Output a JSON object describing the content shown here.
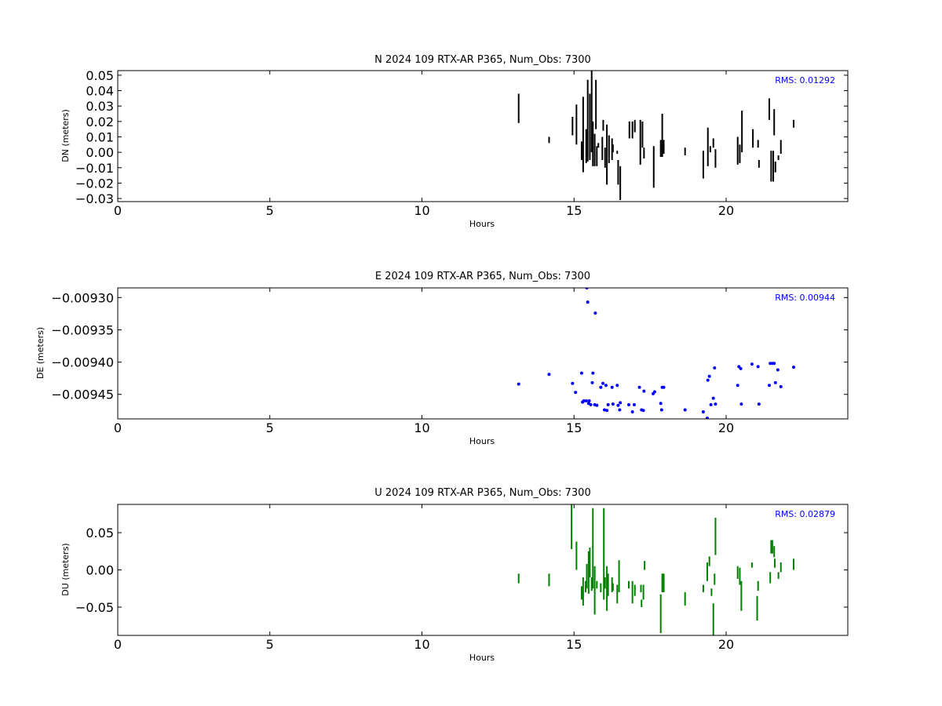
{
  "chart_data": [
    {
      "type": "line",
      "title": "N 2024 109 RTX-AR  P365, Num_Obs: 7300",
      "xlabel": "Hours",
      "ylabel": "DN (meters)",
      "xlim": [
        0,
        24
      ],
      "ylim": [
        -0.032,
        0.053
      ],
      "x_ticks": [
        0,
        5,
        10,
        15,
        20
      ],
      "y_ticks": [
        -0.03,
        -0.02,
        -0.01,
        0.0,
        0.01,
        0.02,
        0.03,
        0.04,
        0.05
      ],
      "y_tick_labels": [
        "−0.03",
        "−0.02",
        "−0.01",
        "0.00",
        "0.01",
        "0.02",
        "0.03",
        "0.04",
        "0.05"
      ],
      "x_tick_labels": [
        "0",
        "5",
        "10",
        "15",
        "20"
      ],
      "color": "#000000",
      "mark": "vline",
      "grid": false,
      "rms_label": "RMS:  0.01292",
      "rms_color": "#0000ff",
      "segments": [
        {
          "x": 13.18,
          "y0": 0.019,
          "y1": 0.038
        },
        {
          "x": 14.18,
          "y0": 0.006,
          "y1": 0.01
        },
        {
          "x": 14.95,
          "y0": 0.011,
          "y1": 0.023
        },
        {
          "x": 15.08,
          "y0": 0.005,
          "y1": 0.031
        },
        {
          "x": 15.25,
          "y0": -0.005,
          "y1": 0.007
        },
        {
          "x": 15.3,
          "y0": -0.013,
          "y1": 0.036
        },
        {
          "x": 15.4,
          "y0": -0.007,
          "y1": 0.015
        },
        {
          "x": 15.45,
          "y0": -0.006,
          "y1": 0.047
        },
        {
          "x": 15.52,
          "y0": -0.005,
          "y1": 0.038
        },
        {
          "x": 15.58,
          "y0": 0.0,
          "y1": 0.053
        },
        {
          "x": 15.62,
          "y0": -0.009,
          "y1": 0.02
        },
        {
          "x": 15.68,
          "y0": -0.009,
          "y1": 0.012
        },
        {
          "x": 15.72,
          "y0": 0.015,
          "y1": 0.047
        },
        {
          "x": 15.75,
          "y0": -0.009,
          "y1": 0.004
        },
        {
          "x": 15.8,
          "y0": 0.003,
          "y1": 0.006
        },
        {
          "x": 15.93,
          "y0": -0.005,
          "y1": 0.01
        },
        {
          "x": 15.96,
          "y0": 0.014,
          "y1": 0.021
        },
        {
          "x": 16.02,
          "y0": -0.01,
          "y1": 0.003
        },
        {
          "x": 16.08,
          "y0": -0.021,
          "y1": 0.018
        },
        {
          "x": 16.15,
          "y0": -0.007,
          "y1": 0.011
        },
        {
          "x": 16.25,
          "y0": -0.005,
          "y1": 0.009
        },
        {
          "x": 16.28,
          "y0": 0.0,
          "y1": 0.005
        },
        {
          "x": 16.42,
          "y0": -0.001,
          "y1": 0.001
        },
        {
          "x": 16.45,
          "y0": -0.021,
          "y1": -0.005
        },
        {
          "x": 16.52,
          "y0": -0.031,
          "y1": -0.009
        },
        {
          "x": 16.82,
          "y0": 0.009,
          "y1": 0.02
        },
        {
          "x": 16.92,
          "y0": 0.009,
          "y1": 0.02
        },
        {
          "x": 17.0,
          "y0": 0.013,
          "y1": 0.021
        },
        {
          "x": 17.18,
          "y0": -0.008,
          "y1": 0.021
        },
        {
          "x": 17.25,
          "y0": 0.003,
          "y1": 0.02
        },
        {
          "x": 17.3,
          "y0": -0.004,
          "y1": 0.003
        },
        {
          "x": 17.62,
          "y0": -0.023,
          "y1": 0.004
        },
        {
          "x": 17.85,
          "y0": -0.003,
          "y1": 0.008
        },
        {
          "x": 17.9,
          "y0": -0.003,
          "y1": 0.025
        },
        {
          "x": 17.95,
          "y0": -0.001,
          "y1": 0.008
        },
        {
          "x": 18.65,
          "y0": -0.002,
          "y1": 0.003
        },
        {
          "x": 19.25,
          "y0": -0.017,
          "y1": 0.001
        },
        {
          "x": 19.4,
          "y0": -0.009,
          "y1": 0.016
        },
        {
          "x": 19.48,
          "y0": 0.0,
          "y1": 0.004
        },
        {
          "x": 19.58,
          "y0": 0.003,
          "y1": 0.009
        },
        {
          "x": 19.65,
          "y0": -0.01,
          "y1": 0.002
        },
        {
          "x": 20.38,
          "y0": -0.008,
          "y1": 0.01
        },
        {
          "x": 20.45,
          "y0": -0.007,
          "y1": 0.005
        },
        {
          "x": 20.52,
          "y0": 0.0,
          "y1": 0.027
        },
        {
          "x": 20.88,
          "y0": 0.003,
          "y1": 0.015
        },
        {
          "x": 21.05,
          "y0": 0.003,
          "y1": 0.008
        },
        {
          "x": 21.08,
          "y0": -0.01,
          "y1": -0.005
        },
        {
          "x": 21.42,
          "y0": 0.021,
          "y1": 0.035
        },
        {
          "x": 21.48,
          "y0": -0.019,
          "y1": 0.001
        },
        {
          "x": 21.55,
          "y0": -0.019,
          "y1": 0.001
        },
        {
          "x": 21.58,
          "y0": 0.011,
          "y1": 0.028
        },
        {
          "x": 21.62,
          "y0": -0.013,
          "y1": -0.006
        },
        {
          "x": 21.72,
          "y0": -0.005,
          "y1": -0.002
        },
        {
          "x": 21.8,
          "y0": -0.001,
          "y1": 0.008
        },
        {
          "x": 22.22,
          "y0": 0.016,
          "y1": 0.021
        }
      ]
    },
    {
      "type": "scatter",
      "title": "E 2024 109 RTX-AR  P365, Num_Obs: 7300",
      "xlabel": "Hours",
      "ylabel": "DE (meters)",
      "xlim": [
        0,
        24
      ],
      "ylim": [
        -0.009488,
        -0.009285
      ],
      "x_ticks": [
        0,
        5,
        10,
        15,
        20
      ],
      "y_ticks": [
        -0.0093,
        -0.00935,
        -0.0094,
        -0.00945
      ],
      "y_tick_labels": [
        "−0.00930",
        "−0.00935",
        "−0.00940",
        "−0.00945"
      ],
      "x_tick_labels": [
        "0",
        "5",
        "10",
        "15",
        "20"
      ],
      "color": "#0000ff",
      "mark": "point",
      "grid": false,
      "rms_label": "RMS:  0.00944",
      "rms_color": "#0000ff",
      "points": [
        [
          13.18,
          -0.009434
        ],
        [
          14.18,
          -0.009419
        ],
        [
          14.95,
          -0.009433
        ],
        [
          15.05,
          -0.009447
        ],
        [
          15.25,
          -0.009417
        ],
        [
          15.28,
          -0.009462
        ],
        [
          15.32,
          -0.00946
        ],
        [
          15.4,
          -0.00946
        ],
        [
          15.42,
          -0.009285
        ],
        [
          15.45,
          -0.009307
        ],
        [
          15.48,
          -0.009464
        ],
        [
          15.5,
          -0.00946
        ],
        [
          15.55,
          -0.009466
        ],
        [
          15.6,
          -0.009432
        ],
        [
          15.62,
          -0.009417
        ],
        [
          15.68,
          -0.009466
        ],
        [
          15.7,
          -0.009324
        ],
        [
          15.75,
          -0.009467
        ],
        [
          15.88,
          -0.009439
        ],
        [
          15.95,
          -0.009433
        ],
        [
          16.0,
          -0.009474
        ],
        [
          16.05,
          -0.009436
        ],
        [
          16.08,
          -0.009475
        ],
        [
          16.12,
          -0.009466
        ],
        [
          16.25,
          -0.009439
        ],
        [
          16.28,
          -0.009465
        ],
        [
          16.42,
          -0.009436
        ],
        [
          16.45,
          -0.009467
        ],
        [
          16.5,
          -0.009474
        ],
        [
          16.52,
          -0.009463
        ],
        [
          16.8,
          -0.009466
        ],
        [
          16.92,
          -0.009477
        ],
        [
          16.98,
          -0.009466
        ],
        [
          17.15,
          -0.009439
        ],
        [
          17.22,
          -0.009474
        ],
        [
          17.28,
          -0.009475
        ],
        [
          17.3,
          -0.009445
        ],
        [
          17.6,
          -0.009449
        ],
        [
          17.65,
          -0.009446
        ],
        [
          17.85,
          -0.009464
        ],
        [
          17.88,
          -0.009474
        ],
        [
          17.9,
          -0.009439
        ],
        [
          17.95,
          -0.009439
        ],
        [
          18.65,
          -0.009474
        ],
        [
          19.25,
          -0.009477
        ],
        [
          19.38,
          -0.009487
        ],
        [
          19.4,
          -0.009428
        ],
        [
          19.45,
          -0.009422
        ],
        [
          19.5,
          -0.009466
        ],
        [
          19.58,
          -0.009456
        ],
        [
          19.62,
          -0.009409
        ],
        [
          19.65,
          -0.009465
        ],
        [
          20.38,
          -0.009436
        ],
        [
          20.42,
          -0.009407
        ],
        [
          20.48,
          -0.00941
        ],
        [
          20.5,
          -0.009465
        ],
        [
          20.85,
          -0.009403
        ],
        [
          21.05,
          -0.009407
        ],
        [
          21.08,
          -0.009465
        ],
        [
          21.42,
          -0.009436
        ],
        [
          21.45,
          -0.009402
        ],
        [
          21.52,
          -0.009402
        ],
        [
          21.58,
          -0.009402
        ],
        [
          21.62,
          -0.009432
        ],
        [
          21.7,
          -0.009412
        ],
        [
          21.8,
          -0.009438
        ],
        [
          22.22,
          -0.009408
        ]
      ]
    },
    {
      "type": "line",
      "title": "U 2024 109 RTX-AR  P365, Num_Obs: 7300",
      "xlabel": "Hours",
      "ylabel": "DU (meters)",
      "xlim": [
        0,
        24
      ],
      "ylim": [
        -0.088,
        0.088
      ],
      "x_ticks": [
        0,
        5,
        10,
        15,
        20
      ],
      "y_ticks": [
        -0.05,
        0.0,
        0.05
      ],
      "y_tick_labels": [
        "−0.05",
        "0.00",
        "0.05"
      ],
      "x_tick_labels": [
        "0",
        "5",
        "10",
        "15",
        "20"
      ],
      "color": "#008000",
      "mark": "vline",
      "grid": false,
      "rms_label": "RMS:  0.02879",
      "rms_color": "#0000ff",
      "segments": [
        {
          "x": 13.18,
          "y0": -0.018,
          "y1": -0.005
        },
        {
          "x": 14.18,
          "y0": -0.022,
          "y1": -0.005
        },
        {
          "x": 14.92,
          "y0": 0.028,
          "y1": 0.088
        },
        {
          "x": 15.08,
          "y0": 0.0,
          "y1": 0.038
        },
        {
          "x": 15.25,
          "y0": -0.04,
          "y1": -0.022
        },
        {
          "x": 15.3,
          "y0": -0.048,
          "y1": -0.01
        },
        {
          "x": 15.38,
          "y0": -0.03,
          "y1": -0.015
        },
        {
          "x": 15.42,
          "y0": -0.025,
          "y1": 0.008
        },
        {
          "x": 15.48,
          "y0": -0.032,
          "y1": 0.025
        },
        {
          "x": 15.52,
          "y0": -0.01,
          "y1": 0.03
        },
        {
          "x": 15.58,
          "y0": -0.028,
          "y1": -0.01
        },
        {
          "x": 15.62,
          "y0": -0.025,
          "y1": 0.083
        },
        {
          "x": 15.68,
          "y0": -0.06,
          "y1": 0.005
        },
        {
          "x": 15.75,
          "y0": -0.025,
          "y1": -0.015
        },
        {
          "x": 15.88,
          "y0": -0.03,
          "y1": -0.018
        },
        {
          "x": 15.98,
          "y0": -0.04,
          "y1": 0.083
        },
        {
          "x": 16.02,
          "y0": -0.025,
          "y1": -0.01
        },
        {
          "x": 16.08,
          "y0": -0.055,
          "y1": 0.005
        },
        {
          "x": 16.12,
          "y0": -0.035,
          "y1": -0.005
        },
        {
          "x": 16.25,
          "y0": -0.03,
          "y1": -0.01
        },
        {
          "x": 16.28,
          "y0": -0.028,
          "y1": -0.018
        },
        {
          "x": 16.42,
          "y0": -0.045,
          "y1": -0.02
        },
        {
          "x": 16.48,
          "y0": -0.03,
          "y1": 0.013
        },
        {
          "x": 16.8,
          "y0": -0.025,
          "y1": -0.015
        },
        {
          "x": 16.92,
          "y0": -0.045,
          "y1": -0.015
        },
        {
          "x": 17.0,
          "y0": -0.035,
          "y1": -0.02
        },
        {
          "x": 17.2,
          "y0": -0.03,
          "y1": -0.02
        },
        {
          "x": 17.22,
          "y0": -0.05,
          "y1": -0.04
        },
        {
          "x": 17.28,
          "y0": -0.04,
          "y1": -0.02
        },
        {
          "x": 17.32,
          "y0": 0.0,
          "y1": 0.012
        },
        {
          "x": 17.85,
          "y0": -0.085,
          "y1": -0.033
        },
        {
          "x": 17.9,
          "y0": -0.03,
          "y1": -0.005
        },
        {
          "x": 17.95,
          "y0": -0.03,
          "y1": -0.005
        },
        {
          "x": 18.65,
          "y0": -0.048,
          "y1": -0.03
        },
        {
          "x": 19.25,
          "y0": -0.03,
          "y1": -0.02
        },
        {
          "x": 19.38,
          "y0": -0.015,
          "y1": 0.01
        },
        {
          "x": 19.45,
          "y0": 0.005,
          "y1": 0.018
        },
        {
          "x": 19.52,
          "y0": -0.035,
          "y1": -0.025
        },
        {
          "x": 19.58,
          "y0": -0.09,
          "y1": -0.045
        },
        {
          "x": 19.62,
          "y0": -0.02,
          "y1": -0.005
        },
        {
          "x": 19.65,
          "y0": 0.02,
          "y1": 0.07
        },
        {
          "x": 20.38,
          "y0": -0.012,
          "y1": 0.005
        },
        {
          "x": 20.45,
          "y0": -0.02,
          "y1": 0.003
        },
        {
          "x": 20.5,
          "y0": -0.055,
          "y1": -0.015
        },
        {
          "x": 20.85,
          "y0": 0.003,
          "y1": 0.01
        },
        {
          "x": 21.02,
          "y0": -0.068,
          "y1": -0.035
        },
        {
          "x": 21.05,
          "y0": -0.028,
          "y1": -0.015
        },
        {
          "x": 21.45,
          "y0": -0.018,
          "y1": -0.003
        },
        {
          "x": 21.48,
          "y0": 0.022,
          "y1": 0.04
        },
        {
          "x": 21.52,
          "y0": 0.022,
          "y1": 0.04
        },
        {
          "x": 21.58,
          "y0": 0.017,
          "y1": 0.032
        },
        {
          "x": 21.6,
          "y0": 0.003,
          "y1": 0.015
        },
        {
          "x": 21.72,
          "y0": -0.012,
          "y1": -0.003
        },
        {
          "x": 21.8,
          "y0": -0.003,
          "y1": 0.01
        },
        {
          "x": 22.22,
          "y0": 0.0,
          "y1": 0.015
        }
      ]
    }
  ]
}
